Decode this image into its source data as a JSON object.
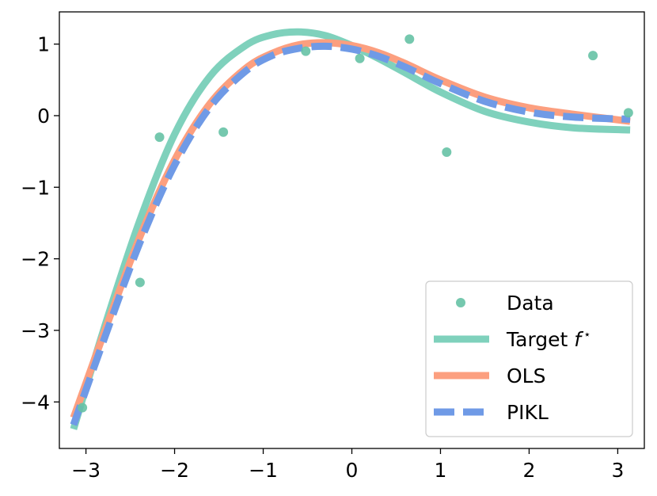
{
  "chart_data": {
    "type": "line",
    "title": "",
    "xlabel": "",
    "ylabel": "",
    "xlim": [
      -3.3,
      3.3
    ],
    "ylim": [
      -4.65,
      1.45
    ],
    "grid": false,
    "x_ticks": [
      -3,
      -2,
      -1,
      0,
      1,
      2,
      3
    ],
    "y_ticks": [
      1,
      0,
      -1,
      -2,
      -3,
      -4
    ],
    "x_tick_labels": [
      "−3",
      "−2",
      "−1",
      "0",
      "1",
      "2",
      "3"
    ],
    "y_tick_labels": [
      "1",
      "0",
      "−1",
      "−2",
      "−3",
      "−4"
    ],
    "legend_position": "bottom-right",
    "series": [
      {
        "name": "Data",
        "kind": "scatter",
        "color": "#66c2a5",
        "x": [
          -3.04,
          -2.39,
          -2.17,
          -1.45,
          -0.52,
          0.09,
          0.65,
          1.07,
          2.72,
          3.12
        ],
        "y": [
          -4.08,
          -2.33,
          -0.3,
          -0.23,
          0.9,
          0.8,
          1.07,
          -0.51,
          0.84,
          0.04
        ]
      },
      {
        "name": "Target f*",
        "kind": "line",
        "color": "#7fd1bc",
        "style": "solid",
        "x": [
          -3.14,
          -2.8,
          -2.4,
          -2.0,
          -1.6,
          -1.2,
          -0.9,
          -0.6,
          -0.3,
          0.0,
          0.3,
          0.6,
          1.0,
          1.5,
          2.0,
          2.5,
          3.14
        ],
        "y": [
          -4.38,
          -2.99,
          -1.49,
          -0.26,
          0.55,
          0.98,
          1.13,
          1.17,
          1.12,
          0.98,
          0.8,
          0.6,
          0.33,
          0.06,
          -0.09,
          -0.17,
          -0.2
        ]
      },
      {
        "name": "OLS",
        "kind": "line",
        "color": "#fc9f7f",
        "style": "solid",
        "x": [
          -3.14,
          -2.8,
          -2.4,
          -2.0,
          -1.6,
          -1.2,
          -0.9,
          -0.6,
          -0.3,
          0.0,
          0.3,
          0.6,
          1.0,
          1.5,
          2.0,
          2.5,
          3.14
        ],
        "y": [
          -4.22,
          -3.05,
          -1.72,
          -0.62,
          0.17,
          0.66,
          0.87,
          0.99,
          1.02,
          0.98,
          0.88,
          0.73,
          0.5,
          0.26,
          0.11,
          0.02,
          -0.08
        ]
      },
      {
        "name": "PIKL",
        "kind": "line",
        "color": "#6f9ae6",
        "style": "dashed",
        "x": [
          -3.14,
          -2.8,
          -2.4,
          -2.0,
          -1.6,
          -1.2,
          -0.9,
          -0.6,
          -0.3,
          0.0,
          0.3,
          0.6,
          1.0,
          1.5,
          2.0,
          2.5,
          3.14
        ],
        "y": [
          -4.32,
          -3.14,
          -1.8,
          -0.69,
          0.12,
          0.62,
          0.84,
          0.94,
          0.97,
          0.93,
          0.83,
          0.68,
          0.45,
          0.2,
          0.05,
          -0.02,
          -0.05
        ]
      }
    ],
    "legend": {
      "items": [
        {
          "label": "Data",
          "series_index": 0,
          "marker": "dot"
        },
        {
          "label": "Target f",
          "superscript": "⋆",
          "series_index": 1,
          "marker": "line"
        },
        {
          "label": "OLS",
          "series_index": 2,
          "marker": "line"
        },
        {
          "label": "PIKL",
          "series_index": 3,
          "marker": "dashed"
        }
      ]
    }
  }
}
